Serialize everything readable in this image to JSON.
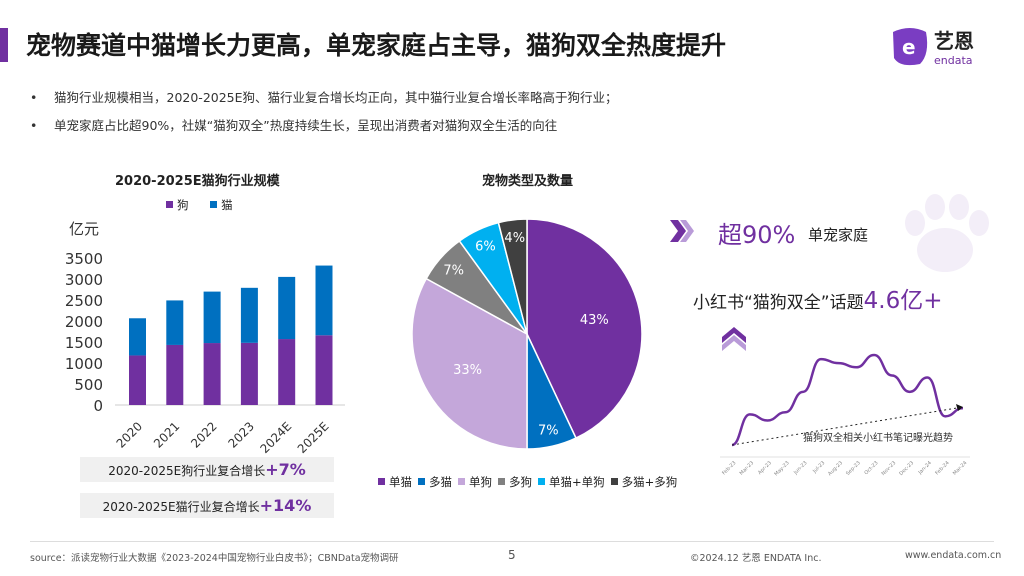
{
  "header": {
    "title": "宠物赛道中猫增长力更高，单宠家庭占主导，猫狗双全热度提升",
    "logo_text": "艺恩",
    "logo_sub": "endata"
  },
  "bullets": [
    "猫狗行业规模相当，2020-2025E狗、猫行业复合增长均正向，其中猫行业复合增长率略高于狗行业；",
    "单宠家庭占比超90%，社媒“猫狗双全”热度持续生长，呈现出消费者对猫狗双全生活的向往"
  ],
  "colors": {
    "accent": "#7030a0",
    "dog": "#7030a0",
    "cat": "#0070c0"
  },
  "chart_data": [
    {
      "type": "bar",
      "stacked": true,
      "title": "2020-2025E猫狗行业规模",
      "ylabel": "亿元",
      "ylim": [
        0,
        3500
      ],
      "yticks": [
        0,
        500,
        1000,
        1500,
        2000,
        2500,
        3000,
        3500
      ],
      "categories": [
        "2020",
        "2021",
        "2022",
        "2023",
        "2024E",
        "2025E"
      ],
      "legend_position": "top",
      "series": [
        {
          "name": "狗",
          "color": "#7030a0",
          "values": [
            1180,
            1430,
            1475,
            1480,
            1570,
            1660
          ]
        },
        {
          "name": "猫",
          "color": "#0070c0",
          "values": [
            885,
            1060,
            1225,
            1310,
            1480,
            1660
          ]
        }
      ]
    },
    {
      "type": "pie",
      "title": "宠物类型及数量",
      "legend_position": "bottom",
      "slices": [
        {
          "name": "单猫",
          "value": 43,
          "label": "43%",
          "color": "#7030a0"
        },
        {
          "name": "多猫",
          "value": 7,
          "label": "7%",
          "color": "#0070c0"
        },
        {
          "name": "单狗",
          "value": 33,
          "label": "33%",
          "color": "#c4a7da"
        },
        {
          "name": "多狗",
          "value": 7,
          "label": "7%",
          "color": "#808080"
        },
        {
          "name": "单猫+单狗",
          "value": 6,
          "label": "6%",
          "color": "#00b0f0"
        },
        {
          "name": "多猫+多狗",
          "value": 4,
          "label": "4%",
          "color": "#404040"
        }
      ]
    },
    {
      "type": "line",
      "annotation": "猫狗双全相关小红书笔记曝光趋势",
      "categories": [
        "Feb-23",
        "Mar-23",
        "Apr-23",
        "May-23",
        "Jun-23",
        "Jul-23",
        "Aug-23",
        "Sep-23",
        "Oct-23",
        "Nov-23",
        "Dec-23",
        "Jan-24",
        "Feb-24",
        "Mar-24"
      ],
      "series": [
        {
          "color": "#7030a0",
          "values": [
            0,
            30,
            24,
            32,
            52,
            84,
            80,
            76,
            88,
            68,
            52,
            66,
            28,
            36
          ]
        }
      ],
      "trend": "dashed-arrow-up"
    }
  ],
  "growth": {
    "dog_label": "2020-2025E狗行业复合增长",
    "dog_value": "+7%",
    "cat_label": "2020-2025E猫行业复合增长",
    "cat_value": "+14%"
  },
  "highlights": {
    "single_value": "超90%",
    "single_label": "单宠家庭",
    "xhs_label": "小红书“猫狗双全”话题",
    "xhs_value": "4.6亿+"
  },
  "footer": {
    "source": "source：派读宠物行业大数据《2023-2024中国宠物行业白皮书》；CBNData宠物调研",
    "page": "5",
    "copyright": "©2024.12  艺恩  ENDATA Inc.",
    "website": "www.endata.com.cn"
  }
}
